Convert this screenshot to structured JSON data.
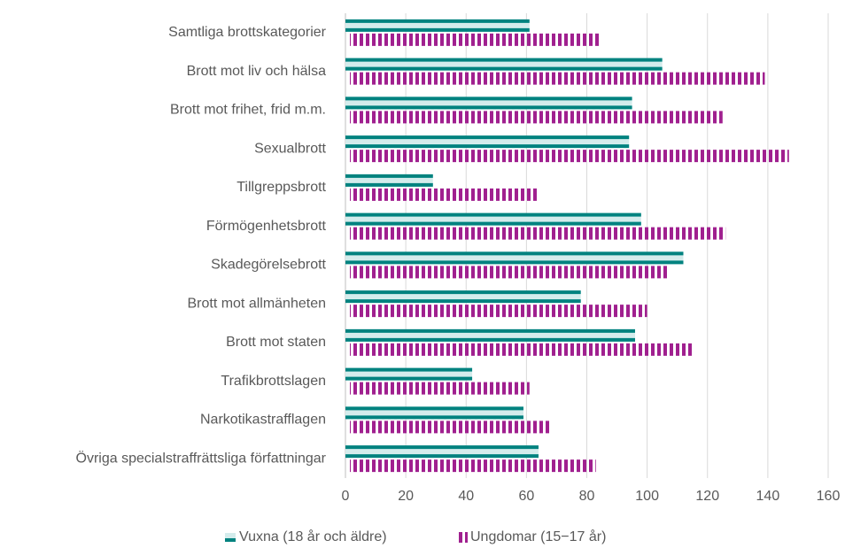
{
  "chart_data": {
    "type": "bar",
    "orientation": "horizontal",
    "categories": [
      "Samtliga brottskategorier",
      "Brott mot liv och hälsa",
      "Brott mot frihet, frid m.m.",
      "Sexualbrott",
      "Tillgreppsbrott",
      "Förmögenhetsbrott",
      "Skadegörelsebrott",
      "Brott mot allmänheten",
      "Brott mot staten",
      "Trafikbrottslagen",
      "Narkotikastrafflagen",
      "Övriga specialstraffrättsliga författningar"
    ],
    "series": [
      {
        "name": "Vuxna (18 år och äldre)",
        "color": "#00827f",
        "values": [
          61,
          105,
          95,
          94,
          29,
          98,
          112,
          78,
          96,
          42,
          59,
          64
        ]
      },
      {
        "name": "Ungdomar (15−17 år)",
        "color": "#a0208f",
        "values": [
          84,
          139,
          125,
          147,
          64,
          126,
          107,
          100,
          115,
          61,
          68,
          83
        ]
      }
    ],
    "xlim": [
      0,
      160
    ],
    "xticks": [
      0,
      20,
      40,
      60,
      80,
      100,
      120,
      140,
      160
    ],
    "grid": true,
    "legend": "bottom"
  }
}
